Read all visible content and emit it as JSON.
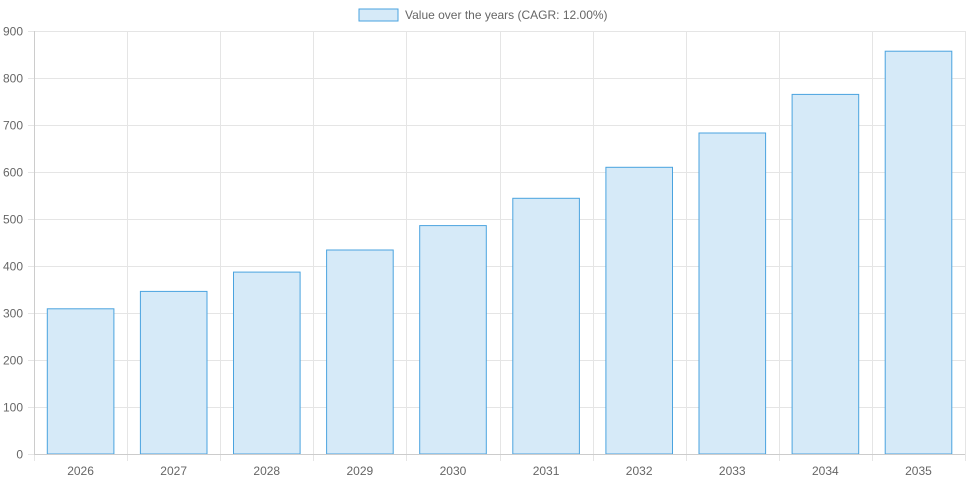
{
  "chart_data": {
    "type": "bar",
    "title": "",
    "xlabel": "",
    "ylabel": "",
    "legend": {
      "position": "top-center",
      "label": "Value over the years (CAGR: 12.00%)"
    },
    "categories": [
      "2026",
      "2027",
      "2028",
      "2029",
      "2030",
      "2031",
      "2032",
      "2033",
      "2034",
      "2035"
    ],
    "series": [
      {
        "name": "Value over the years (CAGR: 12.00%)",
        "values": [
          309,
          346,
          387,
          434,
          486,
          544,
          610,
          683,
          765,
          857
        ]
      }
    ],
    "ylim": [
      0,
      900
    ],
    "yticks": [
      "0",
      "100",
      "200",
      "300",
      "400",
      "500",
      "600",
      "700",
      "800",
      "900"
    ],
    "grid": true,
    "colors": {
      "bar_fill": "#d6eaf8",
      "bar_stroke": "#4aa3df",
      "grid": "#e5e5e5",
      "tick_text": "#666666"
    }
  }
}
